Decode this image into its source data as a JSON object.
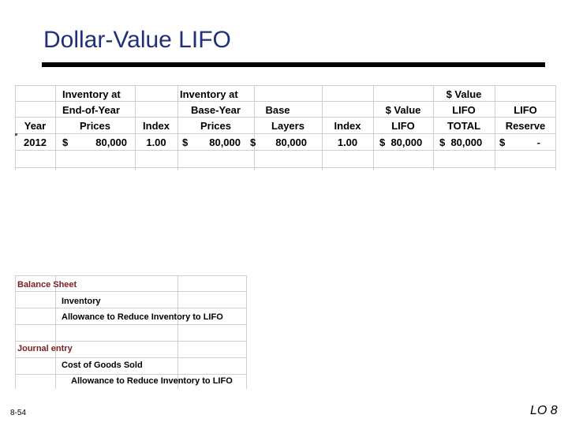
{
  "slide": {
    "title": "Dollar-Value LIFO",
    "page_number": "8-54",
    "lo_tag": "LO 8"
  },
  "table": {
    "headers": {
      "year": [
        "",
        "",
        "Year"
      ],
      "eoy_prices": [
        "Inventory at",
        "End-of-Year",
        "Prices"
      ],
      "index1": [
        "",
        "",
        "Index"
      ],
      "base_prices": [
        "Inventory at",
        "Base-Year",
        "Prices"
      ],
      "layers": [
        "",
        "Base",
        "Layers"
      ],
      "index2": [
        "",
        "",
        "Index"
      ],
      "dv_lifo": [
        "",
        "$ Value",
        "LIFO"
      ],
      "dv_total": [
        "$ Value",
        "LIFO",
        "TOTAL"
      ],
      "reserve": [
        "",
        "LIFO",
        "Reserve"
      ]
    },
    "row": {
      "year": "2012",
      "eoy_cur": "$",
      "eoy_val": "80,000",
      "index1": "1.00",
      "base_cur": "$",
      "base_val": "80,000",
      "layers_cur": "$",
      "layers_val": "80,000",
      "index2": "1.00",
      "dv_lifo": "$  80,000",
      "dv_total": "$  80,000",
      "reserve_cur": "$",
      "reserve_val": "-"
    }
  },
  "entries": {
    "balance_sheet": "Balance Sheet",
    "bs_line1": "Inventory",
    "bs_line2": "Allowance to Reduce Inventory to LIFO",
    "journal": "Journal entry",
    "je_line1": "Cost of Goods Sold",
    "je_line2": "Allowance to Reduce Inventory to LIFO"
  }
}
